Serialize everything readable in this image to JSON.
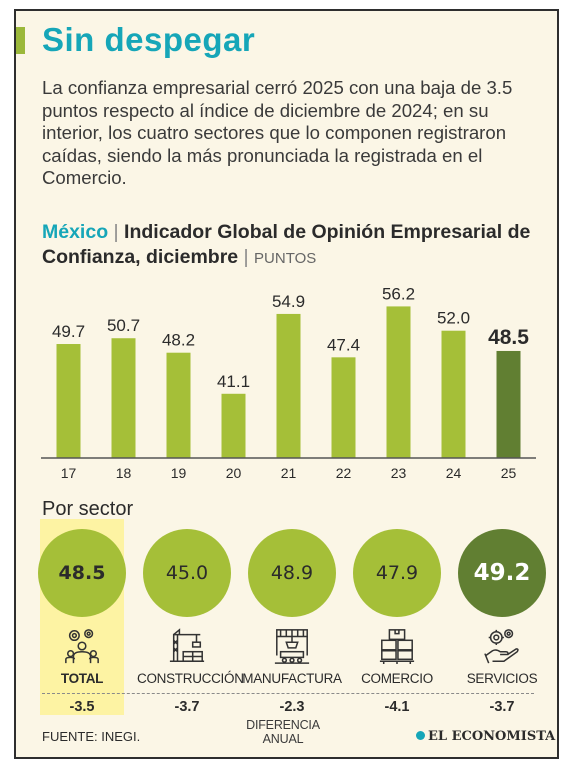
{
  "header": {
    "headline": "Sin despegar",
    "intro": "La confianza empresarial cerró 2025 con una baja de 3.5 puntos respecto al índice de diciembre de 2024; en su interior, los cuatro sectores que lo componen registraron caídas, siendo la más pronunciada la registrada en el Comercio.",
    "country": "México",
    "separator": "|",
    "chart_title": "Indicador Global de Opinión Empresarial de Confianza, diciembre",
    "unit": "PUNTOS"
  },
  "chart_data": {
    "type": "bar",
    "categories": [
      "17",
      "18",
      "19",
      "20",
      "21",
      "22",
      "23",
      "24",
      "25"
    ],
    "values": [
      49.7,
      50.7,
      48.2,
      41.1,
      54.9,
      47.4,
      56.2,
      52.0,
      48.5
    ],
    "value_labels": [
      "49.7",
      "50.7",
      "48.2",
      "41.1",
      "54.9",
      "47.4",
      "56.2",
      "52.0",
      "48.5"
    ],
    "ylim": [
      30,
      58
    ],
    "grid": false,
    "colors": {
      "bar": "#a5bf38",
      "highlight_bar": "#617f32",
      "axis": "#555555"
    }
  },
  "sectors": {
    "title": "Por sector",
    "items": [
      {
        "label": "TOTAL",
        "value": "48.5",
        "diff": "-3.5",
        "icon": "people-gears-icon"
      },
      {
        "label": "CONSTRUCCIÓN",
        "value": "45.0",
        "diff": "-3.7",
        "icon": "crane-icon"
      },
      {
        "label": "MANUFACTURA",
        "value": "48.9",
        "diff": "-2.3",
        "icon": "factory-robot-icon"
      },
      {
        "label": "COMERCIO",
        "value": "47.9",
        "diff": "-4.1",
        "icon": "boxes-icon"
      },
      {
        "label": "SERVICIOS",
        "value": "49.2",
        "diff": "-3.7",
        "icon": "hand-gears-icon"
      }
    ],
    "diff_label": "DIFERENCIA ANUAL",
    "colors": {
      "circle": "#a5bf38",
      "circle_dark": "#617f32",
      "highlight": "#fdf3a3"
    }
  },
  "footer": {
    "source": "FUENTE: INEGI.",
    "logo": "EL ECONOMISTA"
  }
}
